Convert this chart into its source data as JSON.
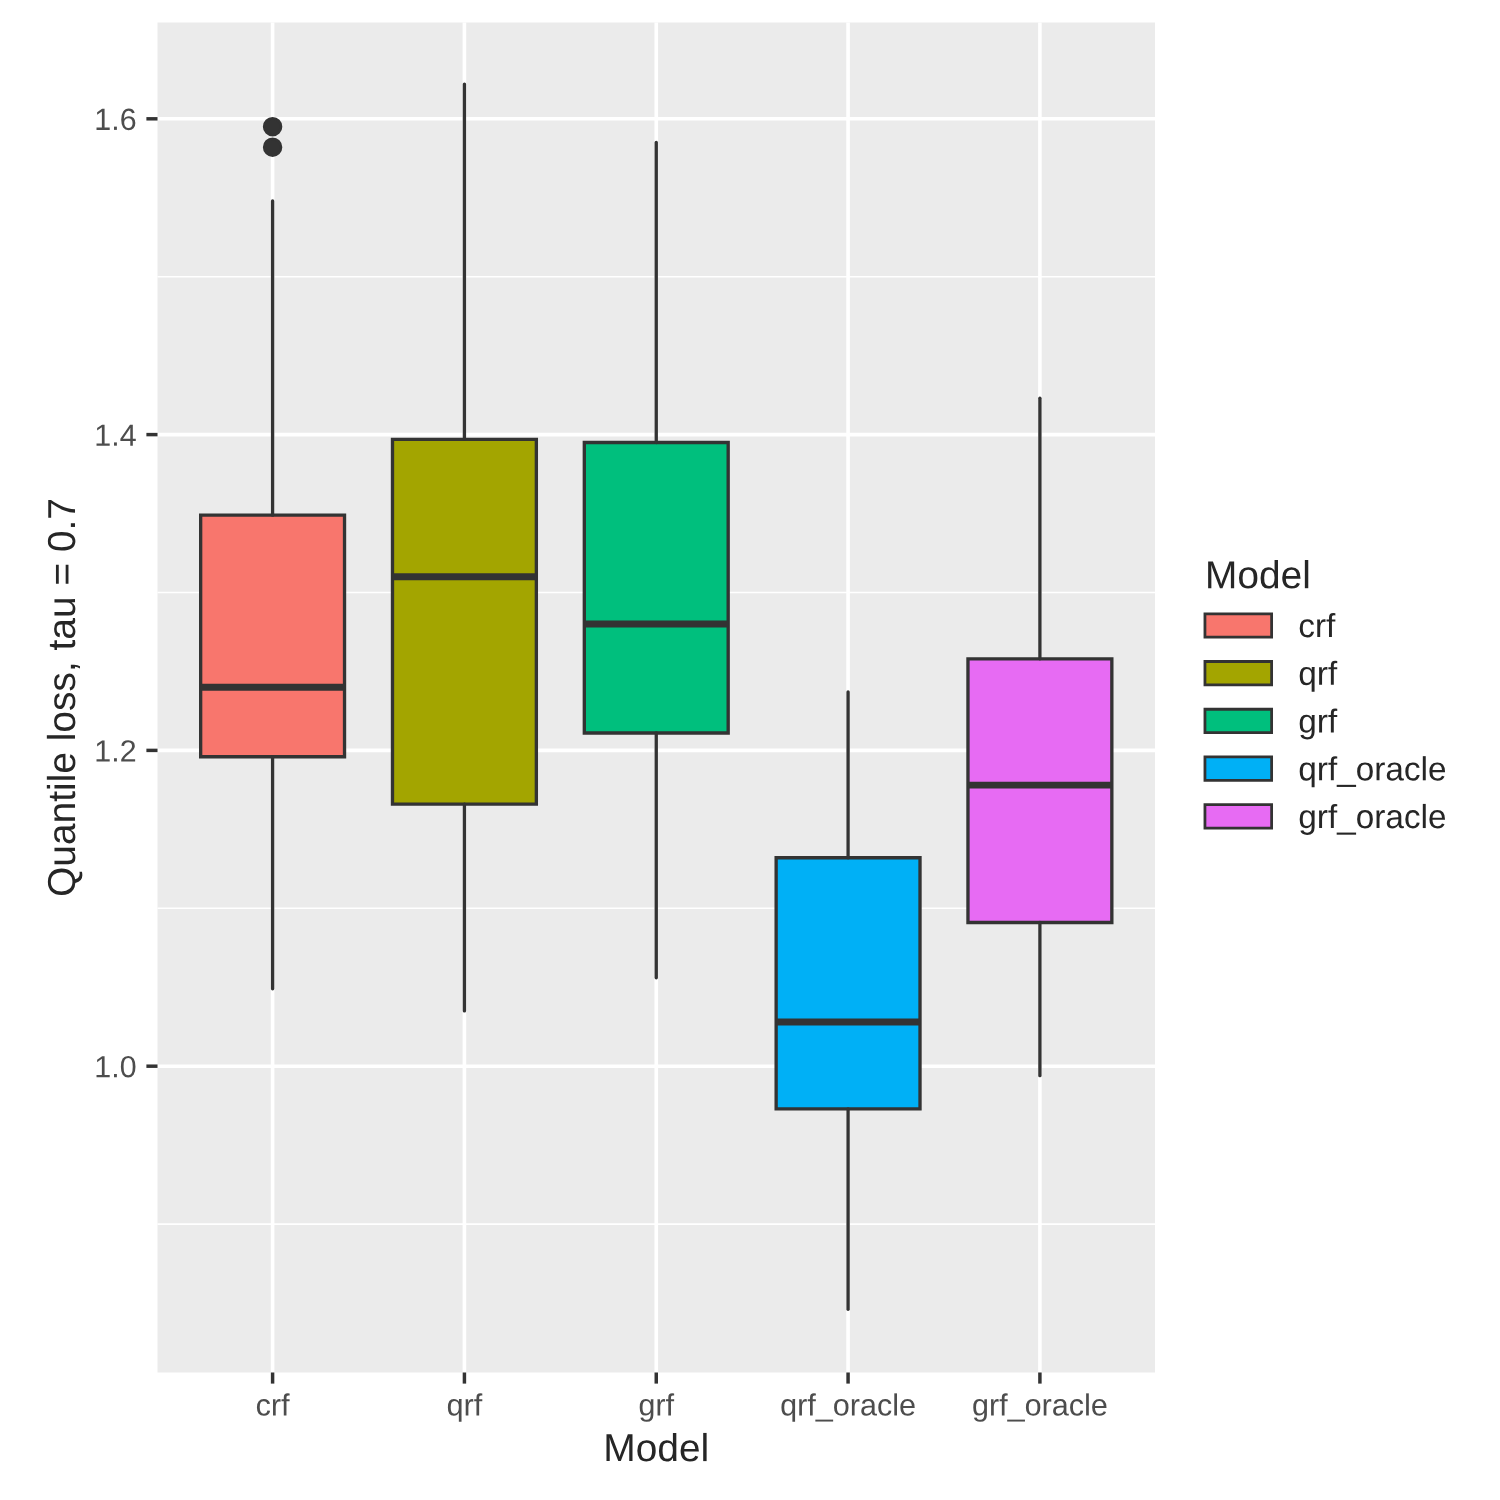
{
  "chart_data": {
    "type": "box",
    "xlabel": "Model",
    "ylabel": "Quantile loss, tau = 0.7",
    "legend_title": "Model",
    "legend": "right",
    "grid": true,
    "categories": [
      "crf",
      "qrf",
      "grf",
      "qrf_oracle",
      "grf_oracle"
    ],
    "series": [
      {
        "name": "crf",
        "color": "#f8766d",
        "boxes": [
          {
            "low": 1.049,
            "q1": 1.196,
            "median": 1.24,
            "q3": 1.349,
            "high": 1.548,
            "outliers": [
              1.582,
              1.595
            ]
          },
          null,
          null,
          null,
          null
        ]
      },
      {
        "name": "qrf",
        "color": "#a3a500",
        "boxes": [
          null,
          {
            "low": 1.035,
            "q1": 1.166,
            "median": 1.31,
            "q3": 1.397,
            "high": 1.622
          },
          null,
          null,
          null
        ]
      },
      {
        "name": "grf",
        "color": "#00bf7d",
        "boxes": [
          null,
          null,
          {
            "low": 1.056,
            "q1": 1.211,
            "median": 1.28,
            "q3": 1.395,
            "high": 1.585
          },
          null,
          null
        ]
      },
      {
        "name": "qrf_oracle",
        "color": "#00b0f6",
        "boxes": [
          null,
          null,
          null,
          {
            "low": 0.846,
            "q1": 0.973,
            "median": 1.028,
            "q3": 1.132,
            "high": 1.237
          },
          null
        ]
      },
      {
        "name": "grf_oracle",
        "color": "#e76bf3",
        "boxes": [
          null,
          null,
          null,
          null,
          {
            "low": 0.994,
            "q1": 1.091,
            "median": 1.178,
            "q3": 1.258,
            "high": 1.423
          }
        ]
      }
    ],
    "ylim": [
      0.806,
      1.661
    ],
    "yticks": [
      {
        "value": 1.0,
        "label": "1.0"
      },
      {
        "value": 1.2,
        "label": "1.2"
      },
      {
        "value": 1.4,
        "label": "1.4"
      },
      {
        "value": 1.6,
        "label": "1.6"
      }
    ]
  }
}
